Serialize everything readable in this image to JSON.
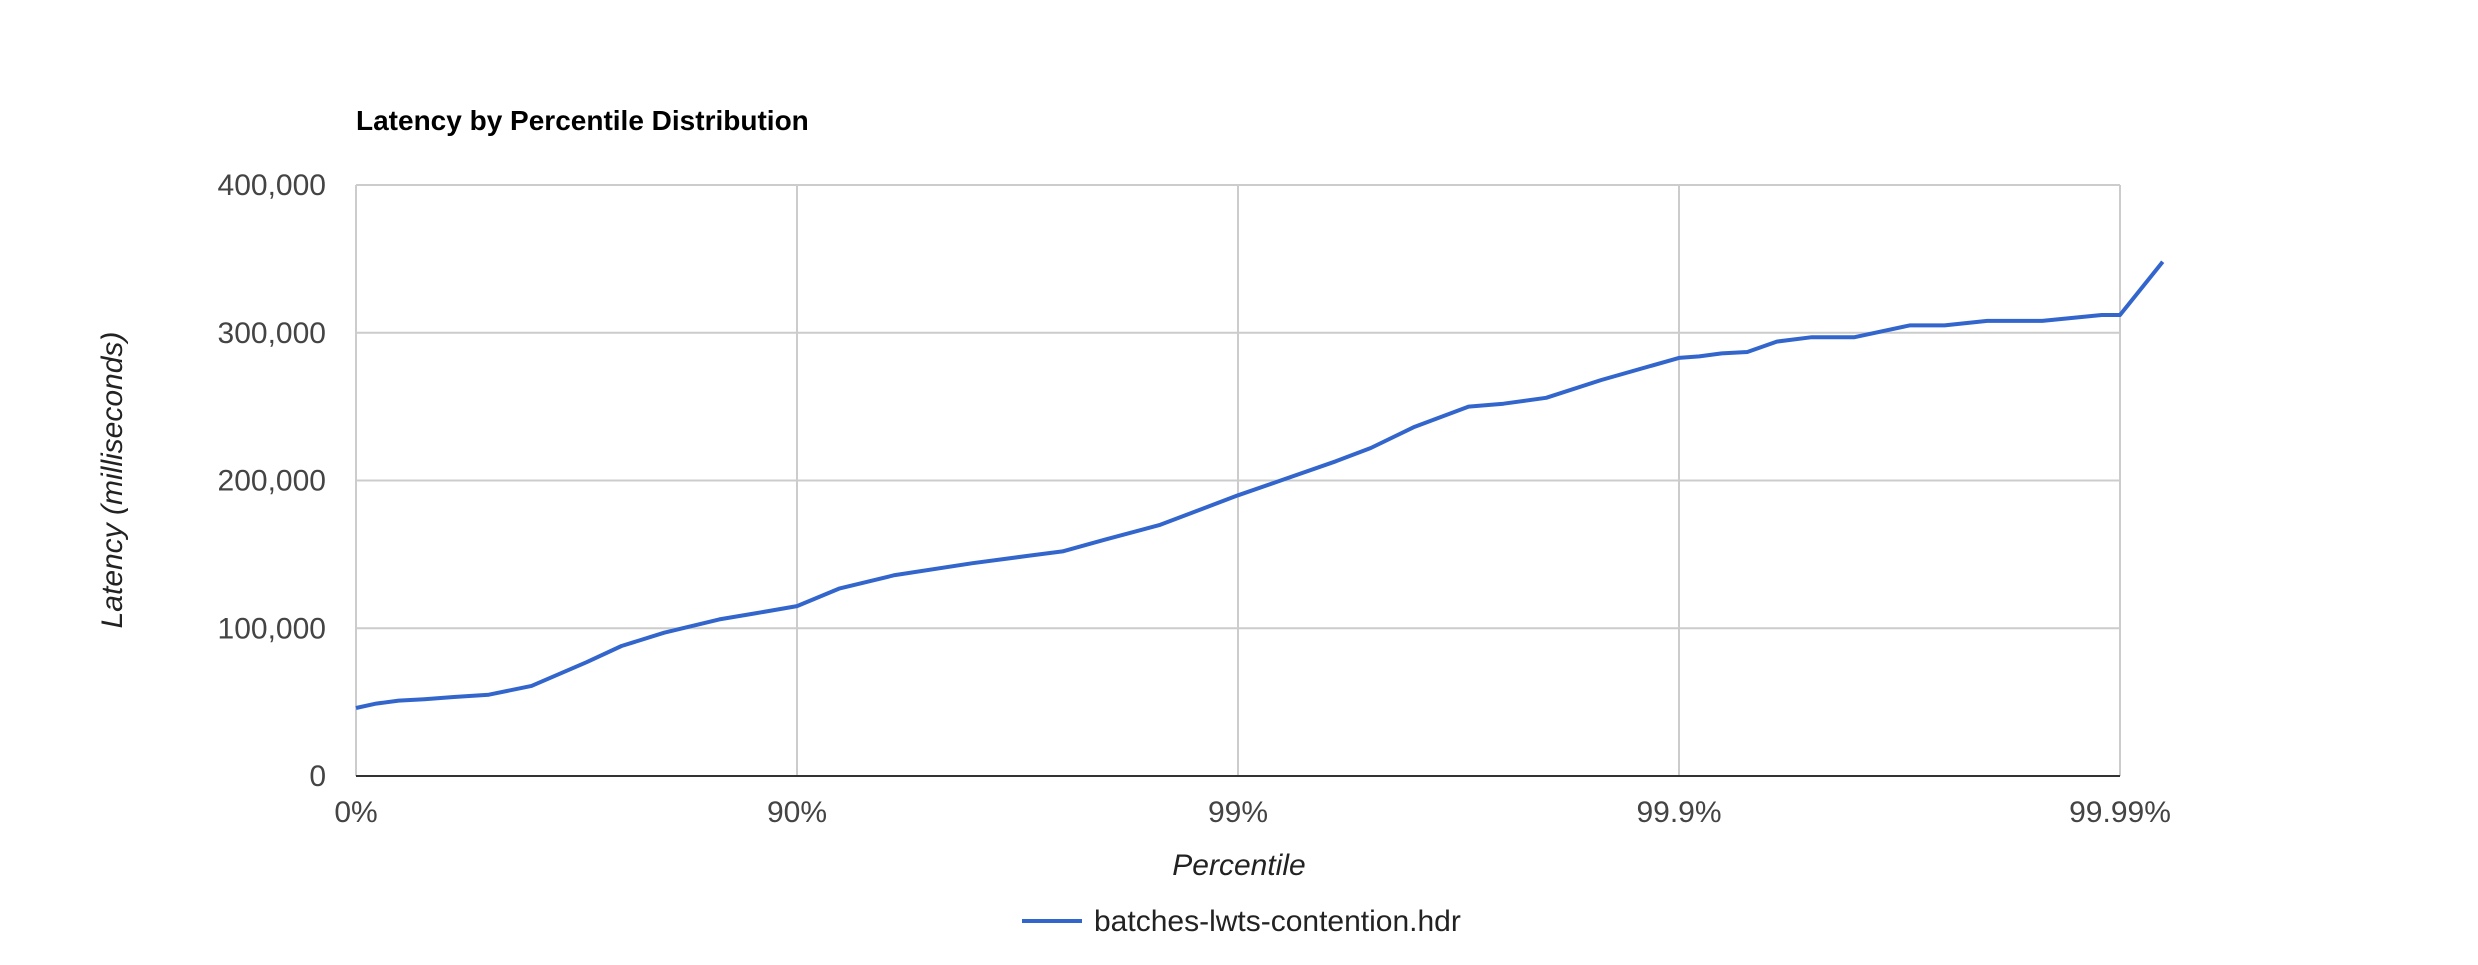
{
  "chart_data": {
    "type": "line",
    "title": "Latency by Percentile Distribution",
    "xlabel": "Percentile",
    "ylabel": "Latency (milliseconds)",
    "x_scale": "log-percentile",
    "x_ticks": [
      "0%",
      "90%",
      "99%",
      "99.9%",
      "99.99%"
    ],
    "y_ticks": [
      "0",
      "100,000",
      "200,000",
      "300,000",
      "400,000"
    ],
    "ylim": [
      0,
      400000
    ],
    "grid": true,
    "legend_position": "bottom",
    "colors": {
      "series": "#3366cc",
      "grid": "#cccccc",
      "axis": "#333333"
    },
    "series": [
      {
        "name": "batches-lwts-contention.hdr",
        "x_percentile": [
          0,
          10,
          20,
          30,
          40,
          50,
          60,
          70,
          75,
          80,
          85,
          87.5,
          90,
          92,
          94,
          96,
          97,
          97.5,
          98,
          98.5,
          99,
          99.2,
          99.4,
          99.5,
          99.6,
          99.7,
          99.75,
          99.8,
          99.85,
          99.9,
          99.91,
          99.92,
          99.93,
          99.94,
          99.95,
          99.96,
          99.97,
          99.975,
          99.98,
          99.985,
          99.989,
          99.99,
          99.992
        ],
        "y": [
          46000,
          49000,
          51000,
          52000,
          53500,
          55000,
          61000,
          77000,
          88000,
          97000,
          106000,
          110000,
          115000,
          127000,
          136000,
          144000,
          149000,
          152000,
          160000,
          170000,
          190000,
          200000,
          213000,
          222000,
          236000,
          250000,
          252000,
          256000,
          268000,
          283000,
          284000,
          286000,
          287000,
          294000,
          297000,
          297000,
          305000,
          305000,
          308000,
          308000,
          312000,
          312000,
          348000
        ]
      }
    ]
  }
}
